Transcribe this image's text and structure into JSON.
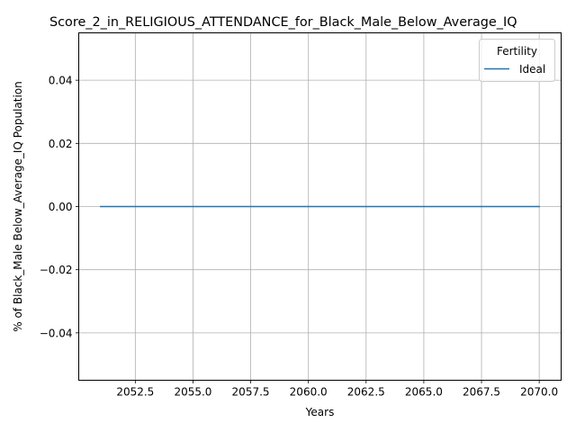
{
  "chart_data": {
    "type": "line",
    "title": "Score_2_in_RELIGIOUS_ATTENDANCE_for_Black_Male_Below_Average_IQ",
    "xlabel": "Years",
    "ylabel": "% of Black_Male Below_Average_IQ Population",
    "x_ticks": [
      "2052.5",
      "2055.0",
      "2057.5",
      "2060.0",
      "2062.5",
      "2065.0",
      "2067.5",
      "2070.0"
    ],
    "y_ticks": [
      "−0.04",
      "−0.02",
      "0.00",
      "0.02",
      "0.04"
    ],
    "xlim": [
      2050.05,
      2070.95
    ],
    "ylim": [
      -0.055,
      0.055
    ],
    "grid": true,
    "legend": {
      "title": "Fertility",
      "placement": "top-right"
    },
    "series": [
      {
        "name": "Ideal",
        "color": "#1f77b4",
        "x": [
          2051,
          2052,
          2053,
          2054,
          2055,
          2056,
          2057,
          2058,
          2059,
          2060,
          2061,
          2062,
          2063,
          2064,
          2065,
          2066,
          2067,
          2068,
          2069,
          2070
        ],
        "y": [
          0,
          0,
          0,
          0,
          0,
          0,
          0,
          0,
          0,
          0,
          0,
          0,
          0,
          0,
          0,
          0,
          0,
          0,
          0,
          0
        ]
      }
    ]
  }
}
